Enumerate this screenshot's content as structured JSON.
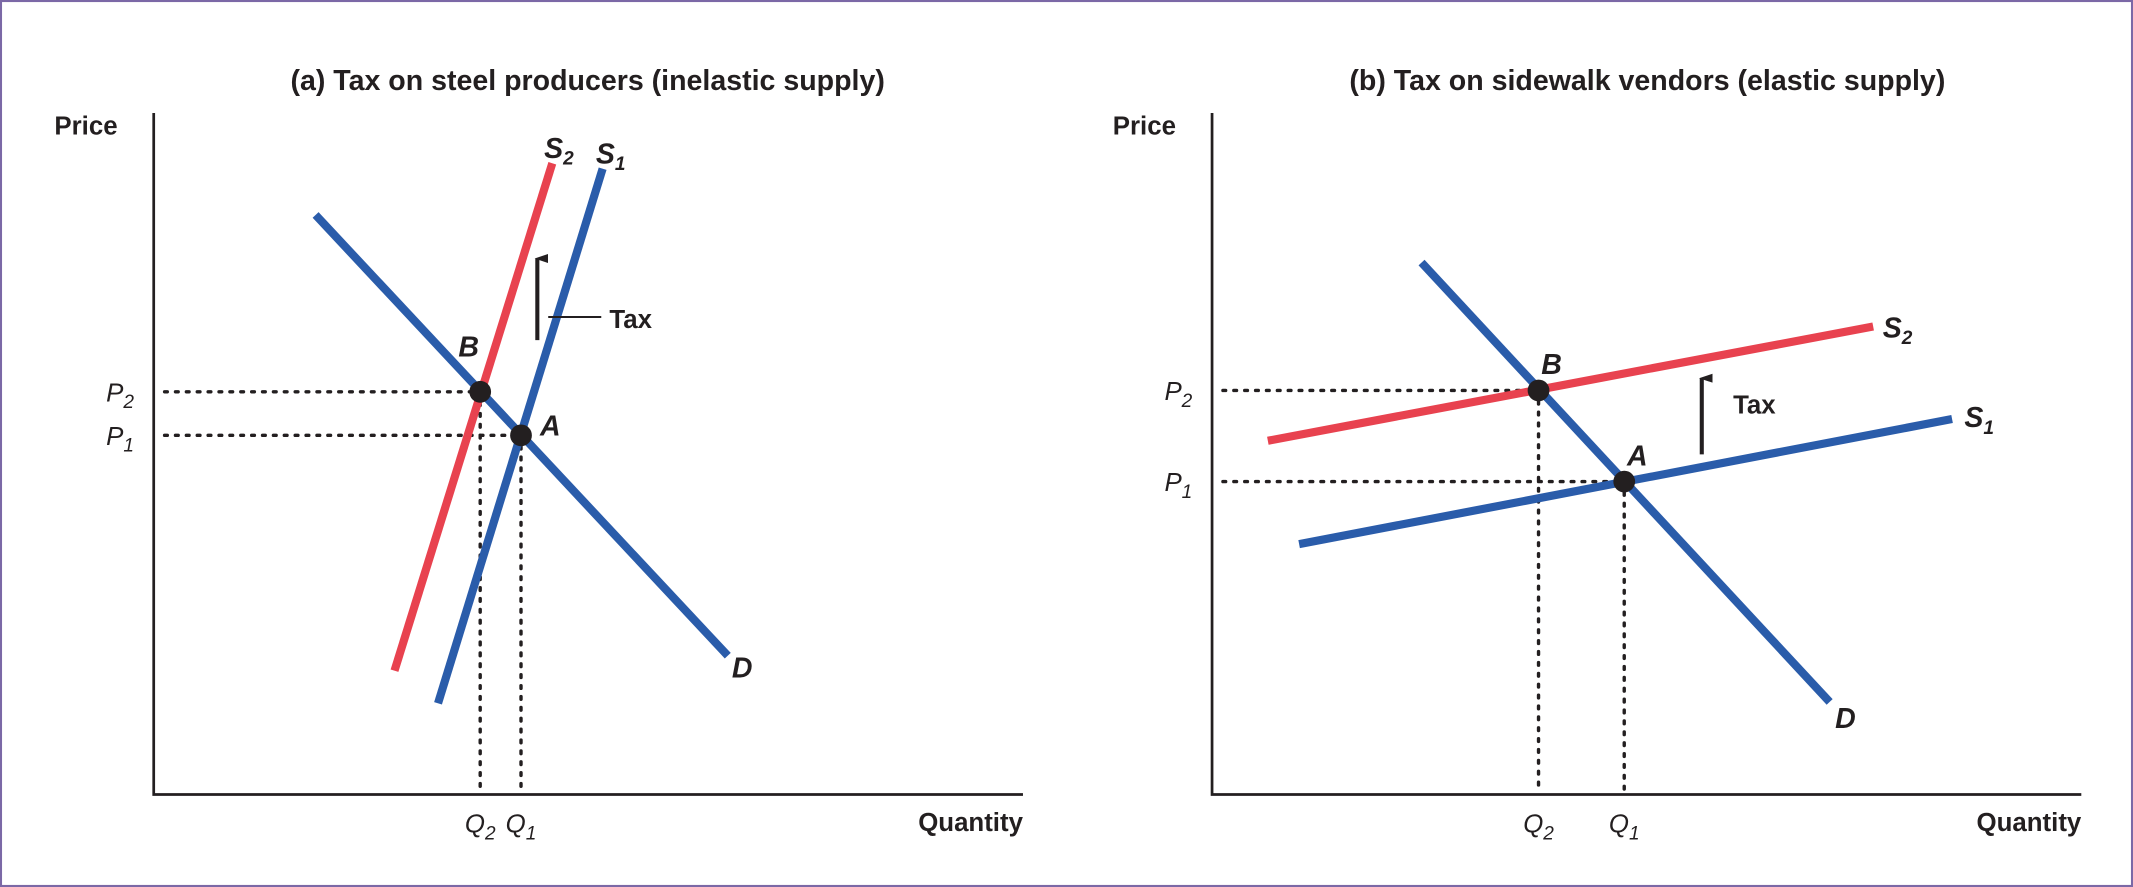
{
  "panels": [
    {
      "title": "(a) Tax on steel producers (inelastic supply)",
      "y_axis": "Price",
      "x_axis": "Quantity",
      "p2": {
        "letter": "P",
        "sub": "2"
      },
      "p1": {
        "letter": "P",
        "sub": "1"
      },
      "q2": {
        "letter": "Q",
        "sub": "2"
      },
      "q1": {
        "letter": "Q",
        "sub": "1"
      },
      "s2": {
        "letter": "S",
        "sub": "2"
      },
      "s1": {
        "letter": "S",
        "sub": "1"
      },
      "d": "D",
      "a": "A",
      "b": "B",
      "tax": "Tax"
    },
    {
      "title": "(b) Tax on sidewalk vendors (elastic supply)",
      "y_axis": "Price",
      "x_axis": "Quantity",
      "p2": {
        "letter": "P",
        "sub": "2"
      },
      "p1": {
        "letter": "P",
        "sub": "1"
      },
      "q2": {
        "letter": "Q",
        "sub": "2"
      },
      "q1": {
        "letter": "Q",
        "sub": "1"
      },
      "s2": {
        "letter": "S",
        "sub": "2"
      },
      "s1": {
        "letter": "S",
        "sub": "1"
      },
      "d": "D",
      "a": "A",
      "b": "B",
      "tax": "Tax"
    }
  ]
}
